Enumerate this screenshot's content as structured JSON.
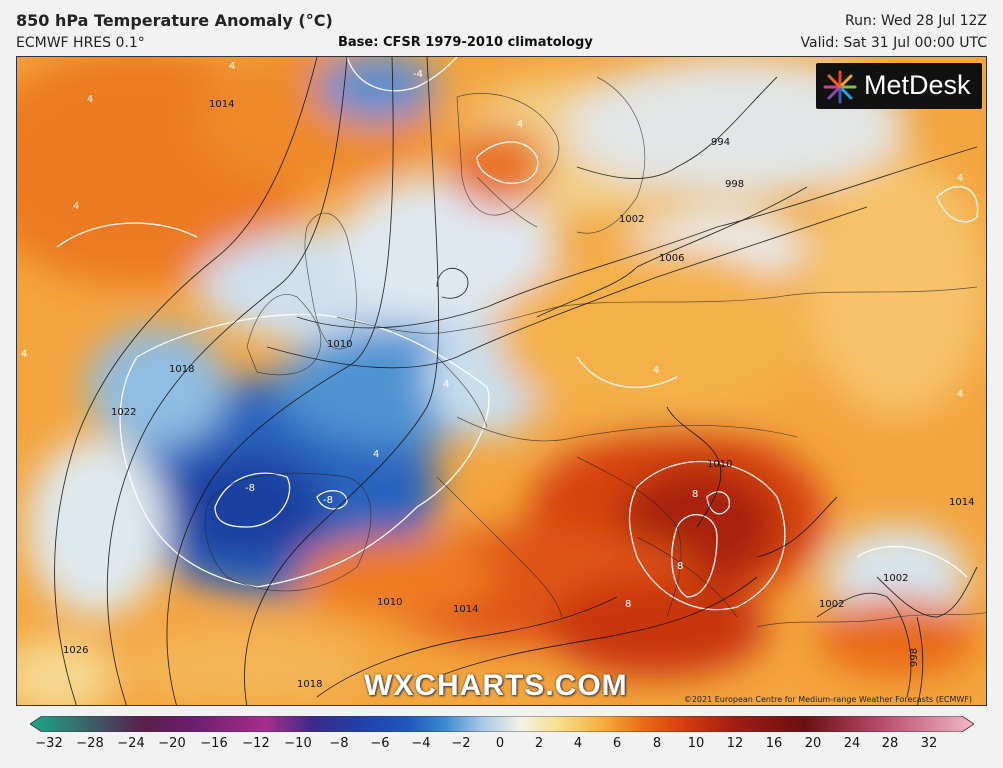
{
  "header": {
    "title": "850 hPa Temperature Anomaly (°C)",
    "model": "ECMWF HRES 0.1°",
    "base": "Base: CFSR 1979-2010 climatology",
    "run": "Run: Wed 28 Jul 12Z",
    "valid": "Valid: Sat 31 Jul 00:00 UTC"
  },
  "logo": {
    "text": "MetDesk"
  },
  "watermark": "WXCHARTS.COM",
  "copyright": "©2021 European Centre for Medium-range Weather Forecasts (ECMWF)",
  "isobars": {
    "labels": [
      "1014",
      "1018",
      "1022",
      "1026",
      "1010",
      "1010",
      "1014",
      "1018",
      "1010",
      "1002",
      "1006",
      "998",
      "1002",
      "1002",
      "1014",
      "998",
      "994"
    ]
  },
  "anomaly_labels": [
    "4",
    "4",
    "4",
    "-4",
    "4",
    "8",
    "8",
    "8",
    "-8",
    "-8",
    "4",
    "4",
    "4",
    "4",
    "4",
    "4"
  ],
  "colorbar": {
    "ticks": [
      "−32",
      "−28",
      "−24",
      "−20",
      "−16",
      "−12",
      "−10",
      "−8",
      "−6",
      "−4",
      "−2",
      "0",
      "2",
      "4",
      "6",
      "8",
      "10",
      "12",
      "16",
      "20",
      "24",
      "28",
      "32"
    ],
    "colors": {
      "neg32": "#1aa88a",
      "neg24": "#5a1f4a",
      "neg16": "#a72d8c",
      "neg10": "#3b2a8a",
      "neg6": "#1f58b8",
      "neg4": "#3d8ad0",
      "neg2": "#a9cbe6",
      "zero": "#f5f1e6",
      "pos2": "#f7df8a",
      "pos4": "#f5a83a",
      "pos6": "#ea6a16",
      "pos8": "#d0360f",
      "pos10": "#9e1c14",
      "pos16": "#6a0f10",
      "pos24": "#b64a6a",
      "pos32": "#f2b8c8"
    }
  }
}
